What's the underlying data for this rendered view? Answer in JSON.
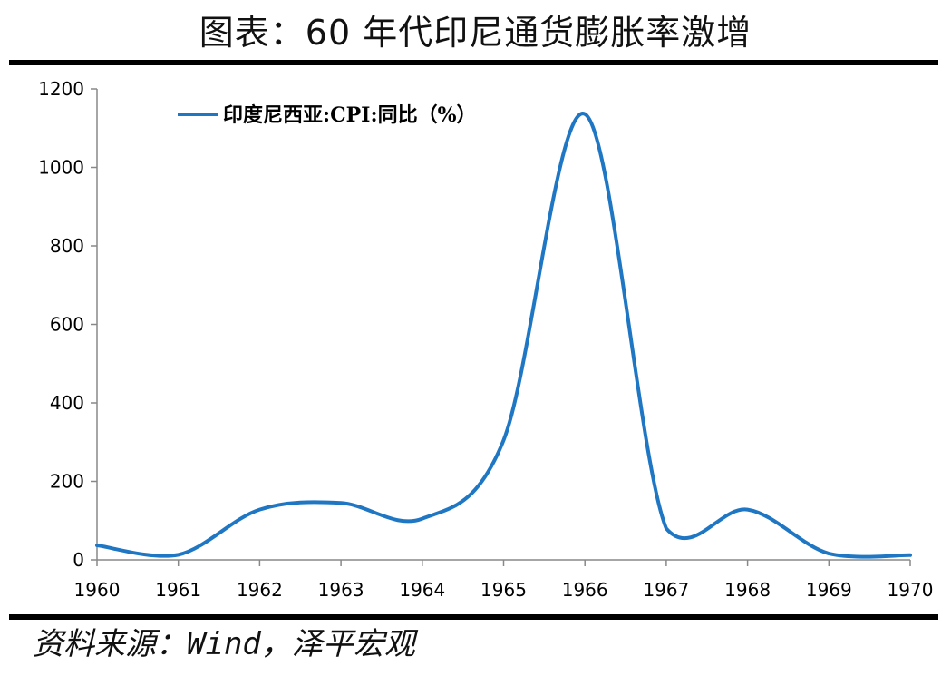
{
  "title": "图表：60 年代印尼通货膨胀率激增",
  "source": "资料来源：Wind，泽平宏观",
  "colors": {
    "series": "#1f77c4",
    "axis": "#888888",
    "rule": "#000000"
  },
  "chart_data": {
    "type": "line",
    "title": "",
    "xlabel": "",
    "ylabel": "",
    "ylim": [
      0,
      1200
    ],
    "xlim": [
      1960,
      1970
    ],
    "yticks": [
      0,
      200,
      400,
      600,
      800,
      1000,
      1200
    ],
    "xticks": [
      1960,
      1961,
      1962,
      1963,
      1964,
      1965,
      1966,
      1967,
      1968,
      1969,
      1970
    ],
    "grid": false,
    "legend_position": "top-left",
    "series": [
      {
        "name": "印度尼西亚:CPI:同比（%）",
        "x": [
          1960,
          1961,
          1962,
          1963,
          1964,
          1965,
          1966,
          1967,
          1968,
          1969,
          1970
        ],
        "y": [
          37,
          13,
          128,
          145,
          105,
          305,
          1136,
          80,
          128,
          16,
          12
        ]
      }
    ]
  }
}
